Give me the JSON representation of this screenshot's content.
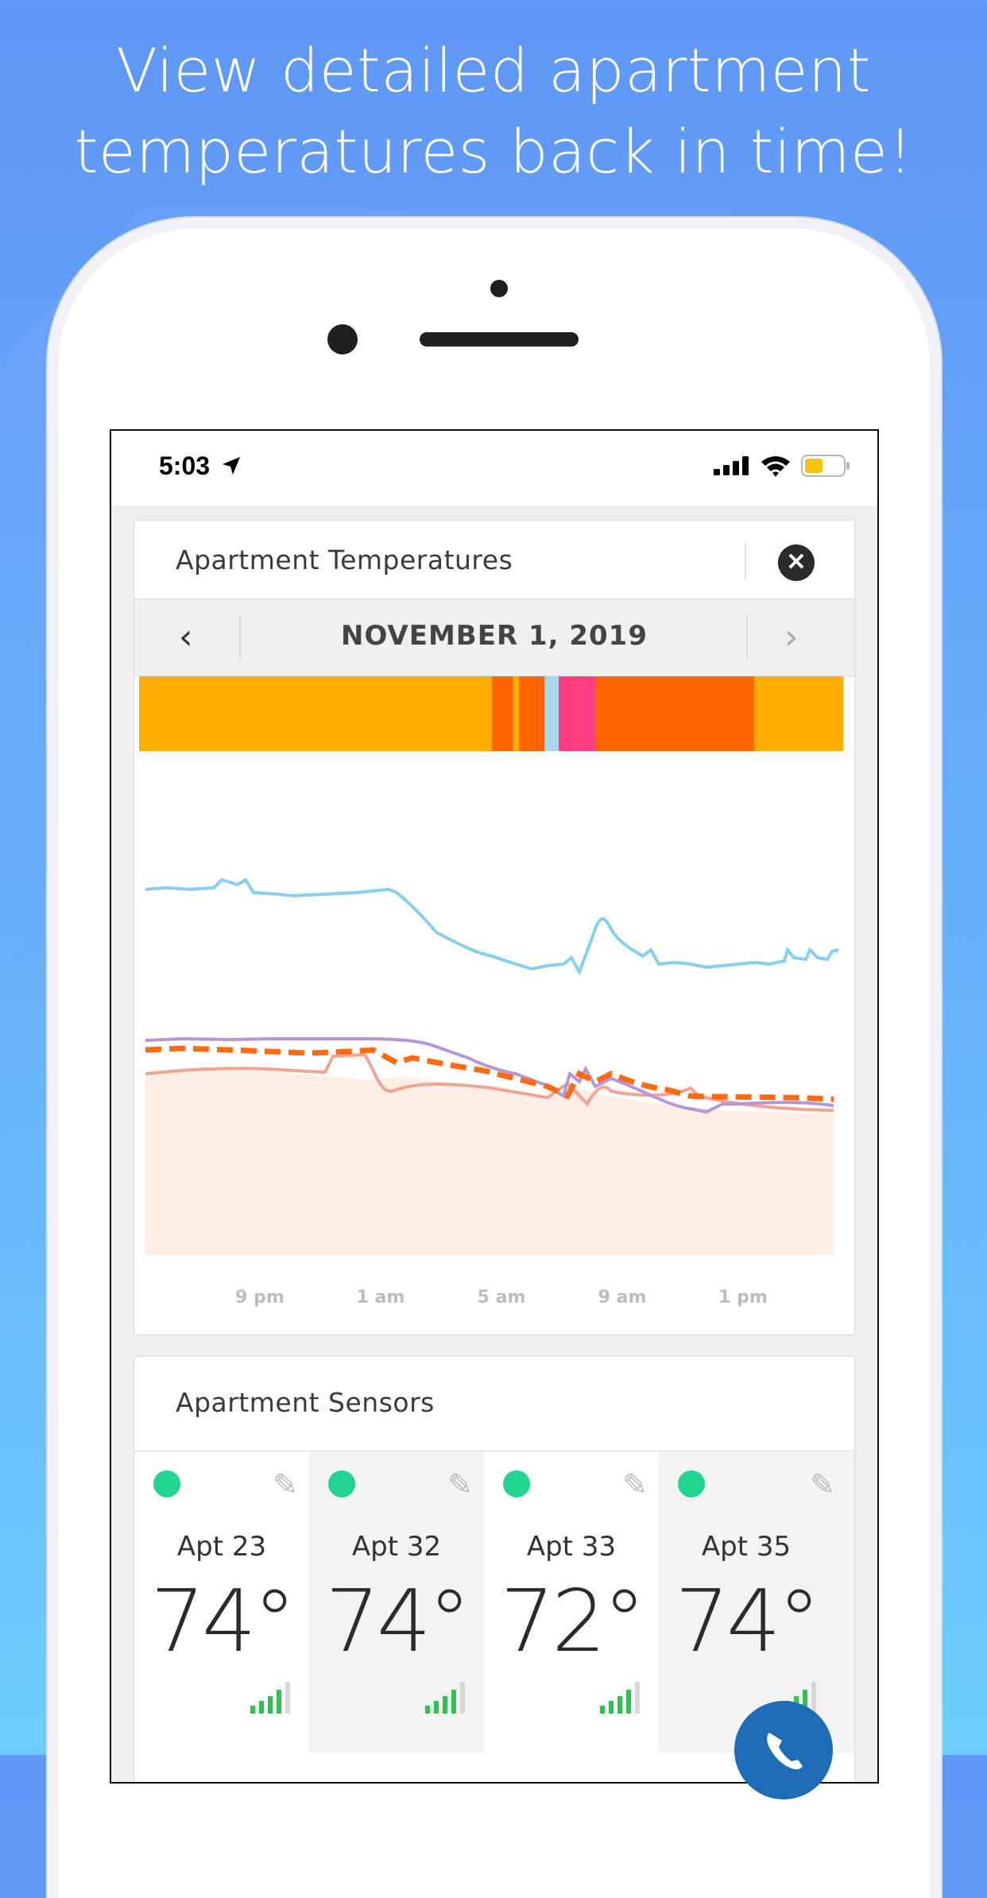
{
  "promo": {
    "headline_line1": "View detailed apartment",
    "headline_line2": "temperatures back in time!"
  },
  "status_bar": {
    "time": "5:03",
    "location_icon": "location-arrow-icon",
    "signal_icon": "cellular-signal-icon",
    "wifi_icon": "wifi-icon",
    "battery_icon": "battery-low-icon"
  },
  "temperatures_card": {
    "title": "Apartment Temperatures",
    "close_icon": "close-circle-icon",
    "date": "NOVEMBER 1, 2019",
    "prev_icon": "chevron-left-icon",
    "next_icon": "chevron-right-icon"
  },
  "chart_data": {
    "type": "line",
    "x_tick_labels": [
      "9 pm",
      "1 am",
      "5 am",
      "9 am",
      "1 pm"
    ],
    "status_band_colors": [
      "#ffae00",
      "#ff6600",
      "#ffae00",
      "#ff6600",
      "#a7d8f2",
      "#ff3d7f",
      "#ff6600",
      "#ffae00"
    ],
    "series_colors": {
      "blue": "#86cff0",
      "purple": "#b397d8",
      "orange_dashed": "#ff6a13",
      "salmon": "#f2a493",
      "fill": "#fdeee4"
    }
  },
  "sensors_card": {
    "title": "Apartment Sensors",
    "sensors": [
      {
        "name": "Apt 23",
        "temp": "74°"
      },
      {
        "name": "Apt 32",
        "temp": "74°"
      },
      {
        "name": "Apt 33",
        "temp": "72°"
      },
      {
        "name": "Apt 35",
        "temp": "74°"
      }
    ],
    "online_color": "#21d48f"
  },
  "fab": {
    "icon": "phone-icon"
  }
}
